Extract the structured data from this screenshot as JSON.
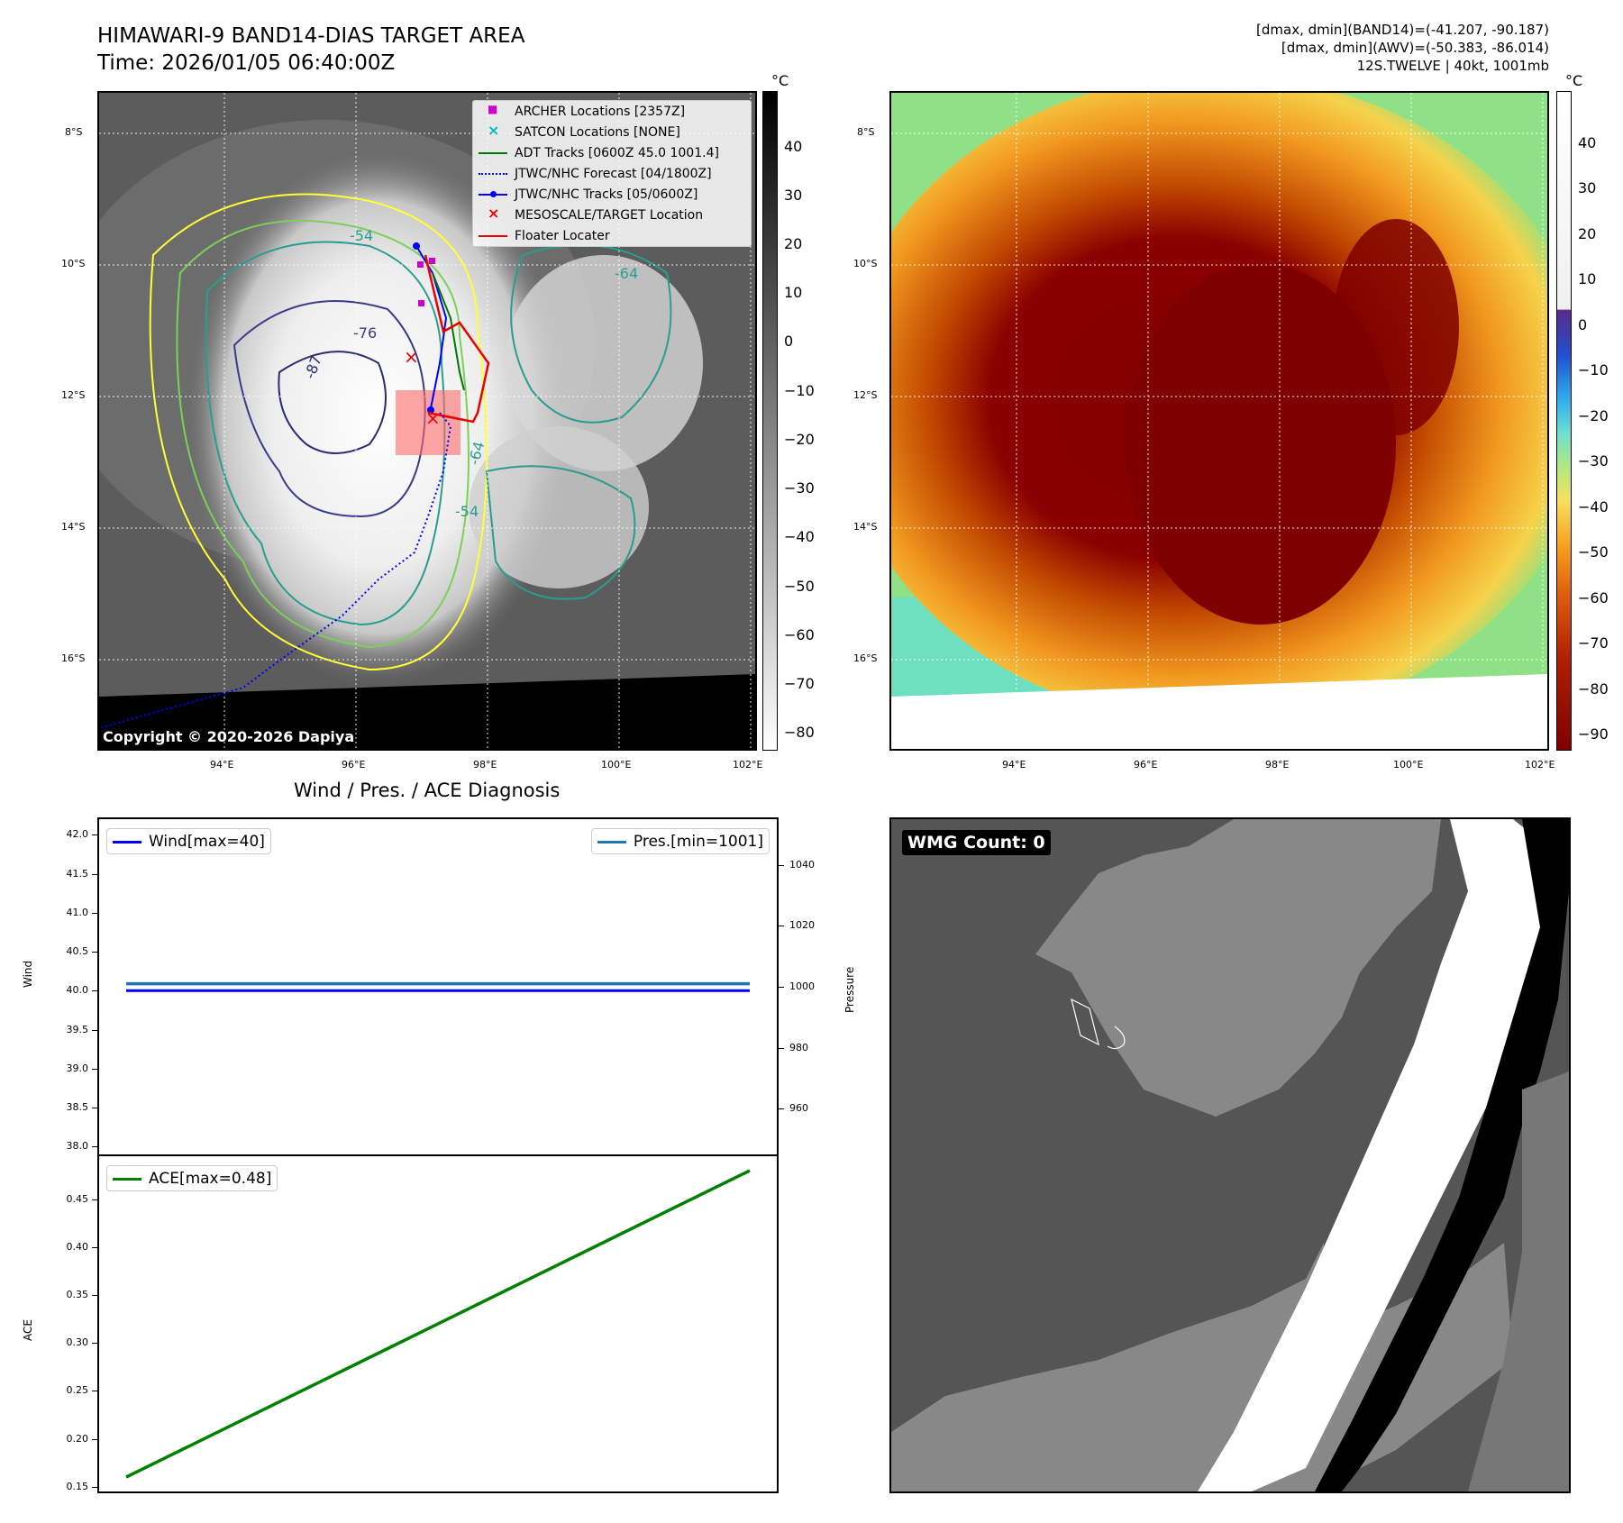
{
  "header": {
    "title_line1": "HIMAWARI-9 BAND14-DIAS TARGET AREA",
    "title_line2": "Time: 2026/01/05 06:40:00Z",
    "info_line1": "[dmax, dmin](BAND14)=(-41.207, -90.187)",
    "info_line2": "[dmax, dmin](AWV)=(-50.383, -86.014)",
    "info_line3": "12S.TWELVE | 40kt, 1001mb"
  },
  "maps": {
    "lat_labels": [
      "8°S",
      "10°S",
      "12°S",
      "14°S",
      "16°S"
    ],
    "lon_labels": [
      "94°E",
      "96°E",
      "98°E",
      "100°E",
      "102°E"
    ],
    "contour_labels": [
      "-54",
      "-76",
      "-87",
      "-64",
      "-54",
      "-64"
    ],
    "copyright": "Copyright © 2020-2026 Dapiya",
    "cbar_unit": "°C",
    "cbar1_ticks": [
      "40",
      "30",
      "20",
      "10",
      "0",
      "−10",
      "−20",
      "−30",
      "−40",
      "−50",
      "−60",
      "−70",
      "−80"
    ],
    "cbar2_ticks": [
      "40",
      "30",
      "20",
      "10",
      "0",
      "−10",
      "−20",
      "−30",
      "−40",
      "−50",
      "−60",
      "−70",
      "−80",
      "−90"
    ],
    "marker_symbols": {
      "square": "■",
      "cross": "×"
    },
    "legend": [
      {
        "label": "ARCHER Locations [2357Z]",
        "color": "#cc00cc",
        "style": "square"
      },
      {
        "label": "SATCON Locations [NONE]",
        "color": "#00bbbb",
        "style": "cross"
      },
      {
        "label": "ADT Tracks [0600Z 45.0 1001.4]",
        "color": "#007700",
        "style": "line"
      },
      {
        "label": "JTWC/NHC Forecast [04/1800Z]",
        "color": "#0000ff",
        "style": "dotted"
      },
      {
        "label": "JTWC/NHC Tracks [05/0600Z]",
        "color": "#0000ff",
        "style": "line-dot"
      },
      {
        "label": "MESOSCALE/TARGET Location",
        "color": "#ee0000",
        "style": "cross"
      },
      {
        "label": "Floater Locater",
        "color": "#ee0000",
        "style": "line"
      }
    ]
  },
  "wind_panel": {
    "title": "Wind / Pres. / ACE Diagnosis",
    "wind_axis_label": "Wind",
    "pres_axis_label": "Pressure",
    "ace_axis_label": "ACE",
    "wind_legend": "Wind[max=40]",
    "pres_legend": "Pres.[min=1001]",
    "ace_legend": "ACE[max=0.48]",
    "wind_ticks": [
      "42.0",
      "41.5",
      "41.0",
      "40.5",
      "40.0",
      "39.5",
      "39.0",
      "38.5",
      "38.0"
    ],
    "pres_ticks": [
      "1040",
      "1020",
      "1000",
      "980",
      "960"
    ],
    "ace_ticks": [
      "0.45",
      "0.40",
      "0.35",
      "0.30",
      "0.25",
      "0.20",
      "0.15"
    ]
  },
  "wmg": {
    "label": "WMG Count: 0"
  },
  "colors": {
    "wind": "#0000ff",
    "pressure": "#1f77b4",
    "ace": "#008000"
  },
  "chart_data": [
    {
      "type": "line",
      "name": "wind",
      "ylabel": "Wind",
      "ylim": [
        37.9,
        42.2
      ],
      "series": [
        {
          "name": "Wind[max=40]",
          "values": [
            40,
            40
          ]
        }
      ]
    },
    {
      "type": "line",
      "name": "pressure",
      "ylabel": "Pressure",
      "ylim": [
        945,
        1055
      ],
      "series": [
        {
          "name": "Pres.[min=1001]",
          "values": [
            1001,
            1001
          ]
        }
      ]
    },
    {
      "type": "line",
      "name": "ace",
      "ylabel": "ACE",
      "ylim": [
        0.145,
        0.495
      ],
      "series": [
        {
          "name": "ACE[max=0.48]",
          "values": [
            0.16,
            0.48
          ]
        }
      ]
    }
  ]
}
